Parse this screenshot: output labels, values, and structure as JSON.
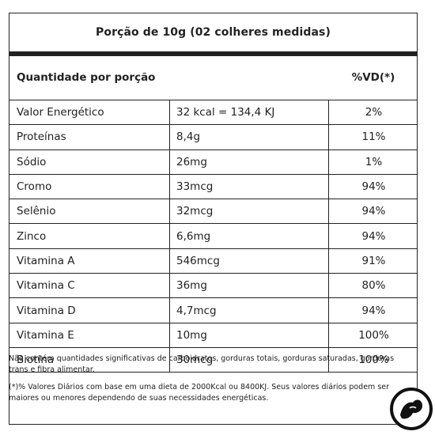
{
  "portion_title": "Porção de 10g (02 colheres medidas)",
  "header": {
    "left": "Quantidade por porção",
    "right": "%VD(*)"
  },
  "rows": [
    {
      "name": "Valor Energético",
      "amount": "32 kcal = 134,4 KJ",
      "vd": "2%"
    },
    {
      "name": "Proteínas",
      "amount": "8,4g",
      "vd": "11%"
    },
    {
      "name": "Sódio",
      "amount": "26mg",
      "vd": "1%"
    },
    {
      "name": "Cromo",
      "amount": "33mcg",
      "vd": "94%"
    },
    {
      "name": "Selênio",
      "amount": "32mcg",
      "vd": "94%"
    },
    {
      "name": "Zinco",
      "amount": "6,6mg",
      "vd": "94%"
    },
    {
      "name": "Vitamina A",
      "amount": "546mcg",
      "vd": "91%"
    },
    {
      "name": "Vitamina C",
      "amount": "36mg",
      "vd": "80%"
    },
    {
      "name": "Vitamina D",
      "amount": "4,7mcg",
      "vd": "94%"
    },
    {
      "name": "Vitamina E",
      "amount": "10mg",
      "vd": "100%"
    },
    {
      "name": "Biotina",
      "amount": "30mcg",
      "vd": "100%"
    }
  ],
  "notes": {
    "line1": "Não contém quantidades significativas de carboidratos, gorduras totais, gorduras saturadas, gorduras trans e fibra alimentar.",
    "line2": "(*)% Valores Diários com base em uma dieta de 2000Kcal ou 8400KJ. Seus valores diários podem ser maiores ou menores dependendo de suas necessidades energéticas."
  },
  "logo": {
    "icon": "flexed-arm-logo-icon",
    "colors": {
      "ring": "#111111",
      "fill": "#ffffff"
    }
  }
}
